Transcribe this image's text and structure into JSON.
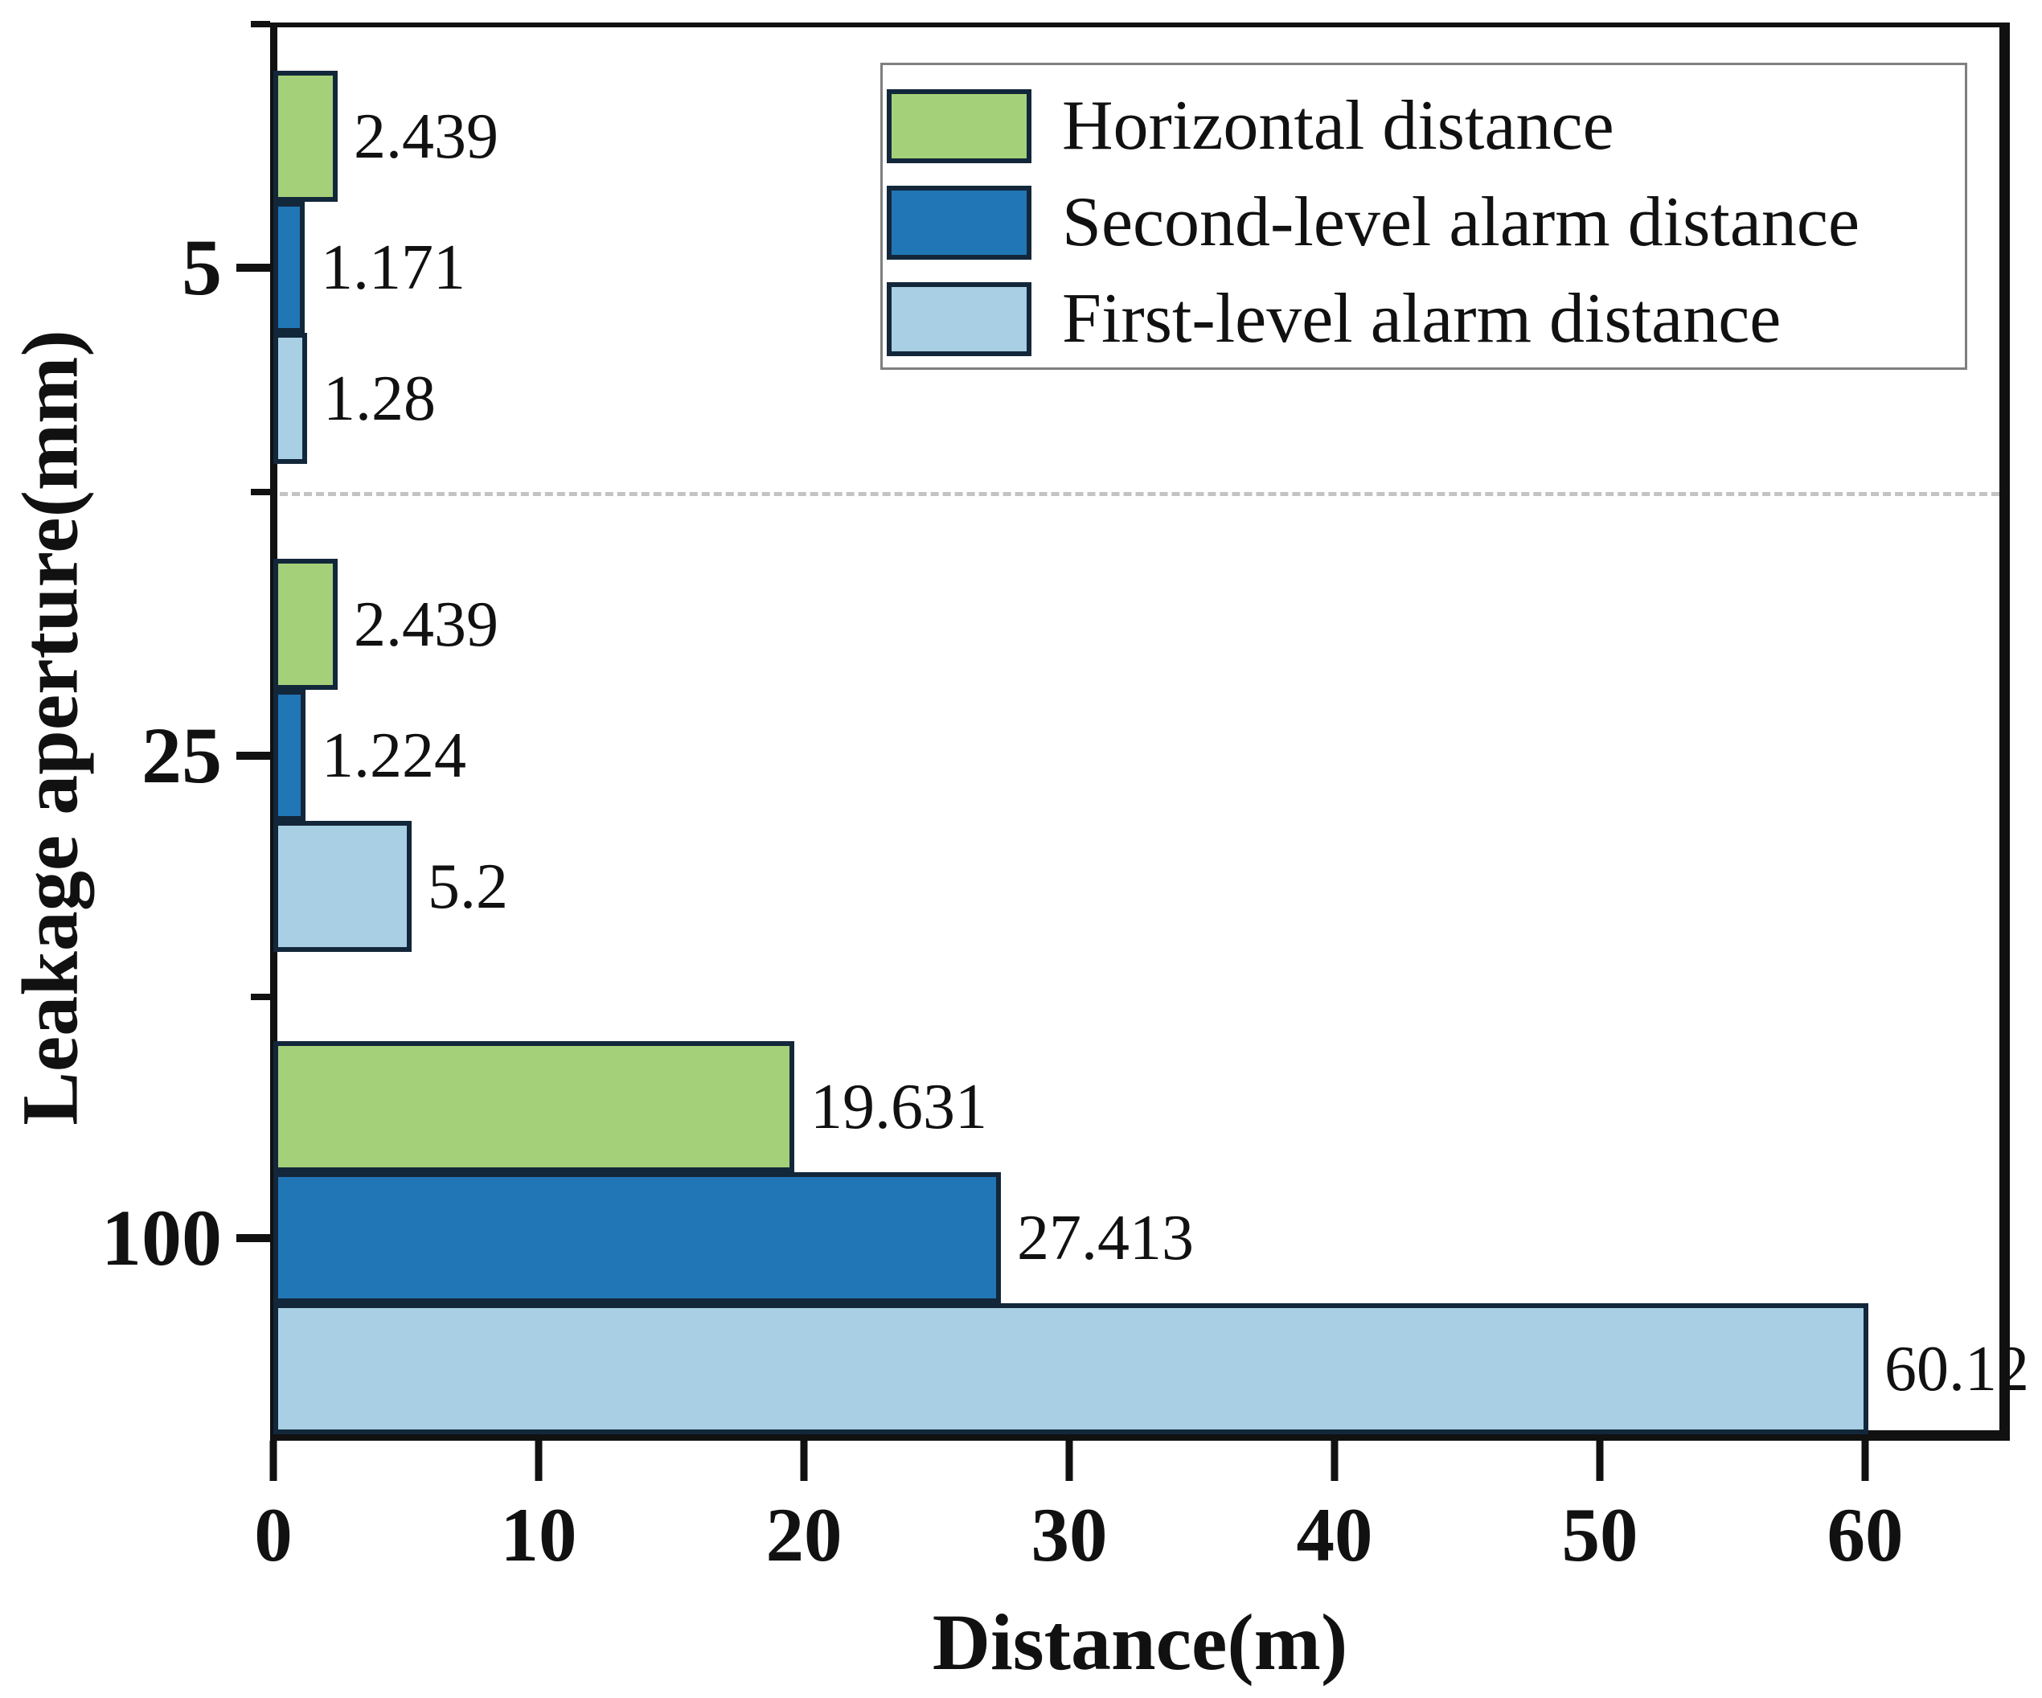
{
  "chart_data": {
    "type": "bar",
    "orientation": "horizontal",
    "xlabel": "Distance(m)",
    "ylabel": "Leakage aperture(mm)",
    "categories": [
      "5",
      "25",
      "100"
    ],
    "series": [
      {
        "name": "Horizontal distance",
        "color": "#a5d07a",
        "values": [
          2.439,
          2.439,
          19.631
        ],
        "labels": [
          "2.439",
          "2.439",
          "19.631"
        ]
      },
      {
        "name": "Second-level alarm distance",
        "color": "#2176b5",
        "values": [
          1.171,
          1.224,
          27.413
        ],
        "labels": [
          "1.171",
          "1.224",
          "27.413"
        ]
      },
      {
        "name": "First-level alarm distance",
        "color": "#a8cfe3",
        "values": [
          1.28,
          5.2,
          60.12
        ],
        "labels": [
          "1.28",
          "5.2",
          "60.12"
        ]
      }
    ],
    "x_ticks": [
      0,
      10,
      20,
      30,
      40,
      50,
      60
    ],
    "xlim": [
      0,
      65.3
    ],
    "legend_position": "upper right",
    "grid": false,
    "separator_after_first_group": true,
    "bar_border_color": "#13273a",
    "axis_color": "#111111"
  }
}
